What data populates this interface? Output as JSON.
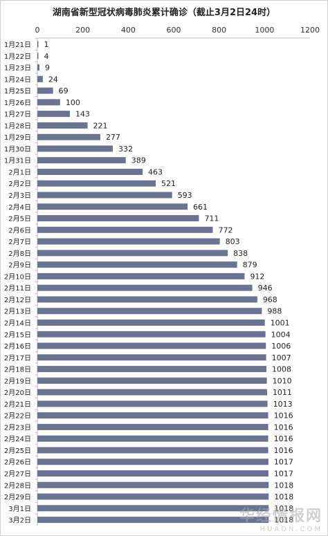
{
  "chart_data": {
    "type": "bar",
    "orientation": "horizontal",
    "title": "湖南省新型冠状病毒肺炎累计确诊（截止3月2日24时）",
    "xlim": [
      0,
      1200
    ],
    "xticks": [
      "0",
      "200",
      "400",
      "600",
      "800",
      "1000",
      "1200"
    ],
    "axis_position": "top",
    "grid": false,
    "bar_color": "#6b7394",
    "categories": [
      "1月21日",
      "1月22日",
      "1月23日",
      "1月24日",
      "1月25日",
      "1月26日",
      "1月27日",
      "1月28日",
      "1月29日",
      "1月30日",
      "1月31日",
      "2月1日",
      "2月2日",
      "2月3日",
      "2月4日",
      "2月5日",
      "2月6日",
      "2月7日",
      "2月8日",
      "2月9日",
      "2月10日",
      "2月11日",
      "2月12日",
      "2月13日",
      "2月14日",
      "2月15日",
      "2月16日",
      "2月17日",
      "2月18日",
      "2月19日",
      "2月20日",
      "2月21日",
      "2月22日",
      "2月23日",
      "2月24日",
      "2月25日",
      "2月26日",
      "2月27日",
      "2月28日",
      "2月29日",
      "3月1日",
      "3月2日"
    ],
    "values": [
      1,
      4,
      9,
      24,
      69,
      100,
      143,
      221,
      277,
      332,
      389,
      463,
      521,
      593,
      661,
      711,
      772,
      803,
      838,
      879,
      912,
      946,
      968,
      988,
      1001,
      1004,
      1006,
      1007,
      1008,
      1010,
      1011,
      1013,
      1016,
      1016,
      1016,
      1016,
      1017,
      1017,
      1018,
      1018,
      1018,
      1018
    ]
  },
  "watermark": {
    "cn": "华经情报网",
    "en": "HUAON.COM"
  }
}
